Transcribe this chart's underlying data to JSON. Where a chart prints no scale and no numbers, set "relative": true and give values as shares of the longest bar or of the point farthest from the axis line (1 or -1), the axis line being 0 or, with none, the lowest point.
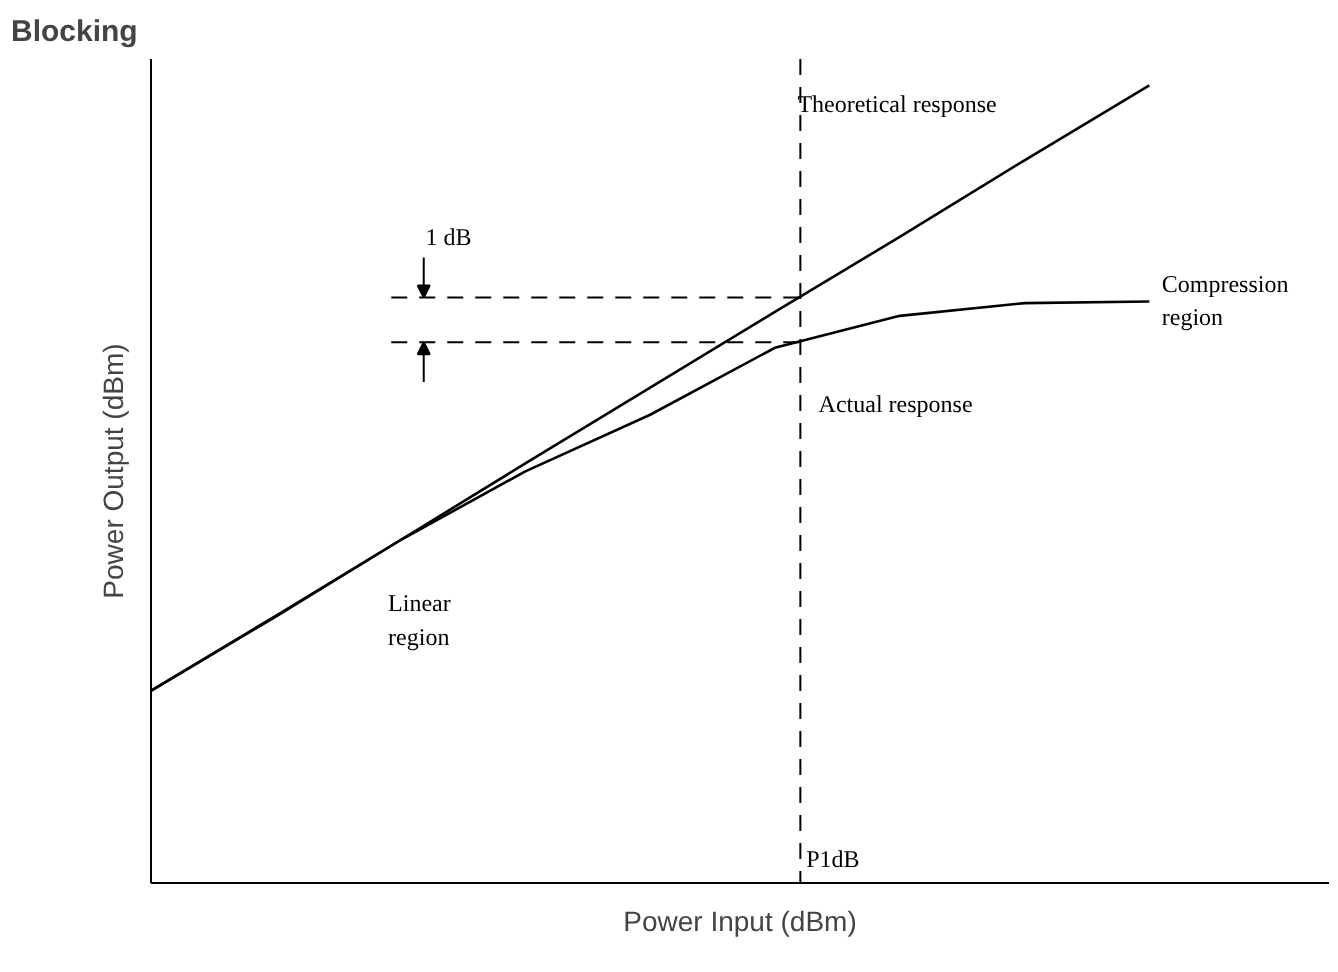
{
  "chart_data": {
    "type": "line",
    "title": "Blocking",
    "xlabel": "Power Input (dBm)",
    "ylabel": "Power Output (dBm)",
    "relative": true,
    "grid": false,
    "marker": "none",
    "line_style": "solid",
    "categories": [
      null,
      null,
      null,
      null,
      null,
      null,
      null,
      null,
      null
    ],
    "series": [
      {
        "color": "#000000",
        "values": [
          0.241,
          0.335,
          0.43,
          0.526,
          0.621,
          0.716,
          0.81,
          0.906,
          1.0
        ]
      },
      {
        "color": "#000000",
        "values": [
          0.241,
          0.334,
          0.43,
          0.516,
          0.587,
          0.671,
          0.711,
          0.727,
          0.729
        ]
      }
    ],
    "ref_lines": [
      {
        "axis": "y",
        "value": 0.734,
        "label": null,
        "line_style": "dashed",
        "color": "#000000"
      },
      {
        "axis": "y",
        "value": 0.678,
        "label": null,
        "line_style": "dashed",
        "color": "#000000"
      }
    ],
    "annotations": [
      "Theoretical response",
      "1 dB",
      "Compression\nregion",
      "Actual response",
      "Linear\nregion",
      "P1dB"
    ]
  }
}
